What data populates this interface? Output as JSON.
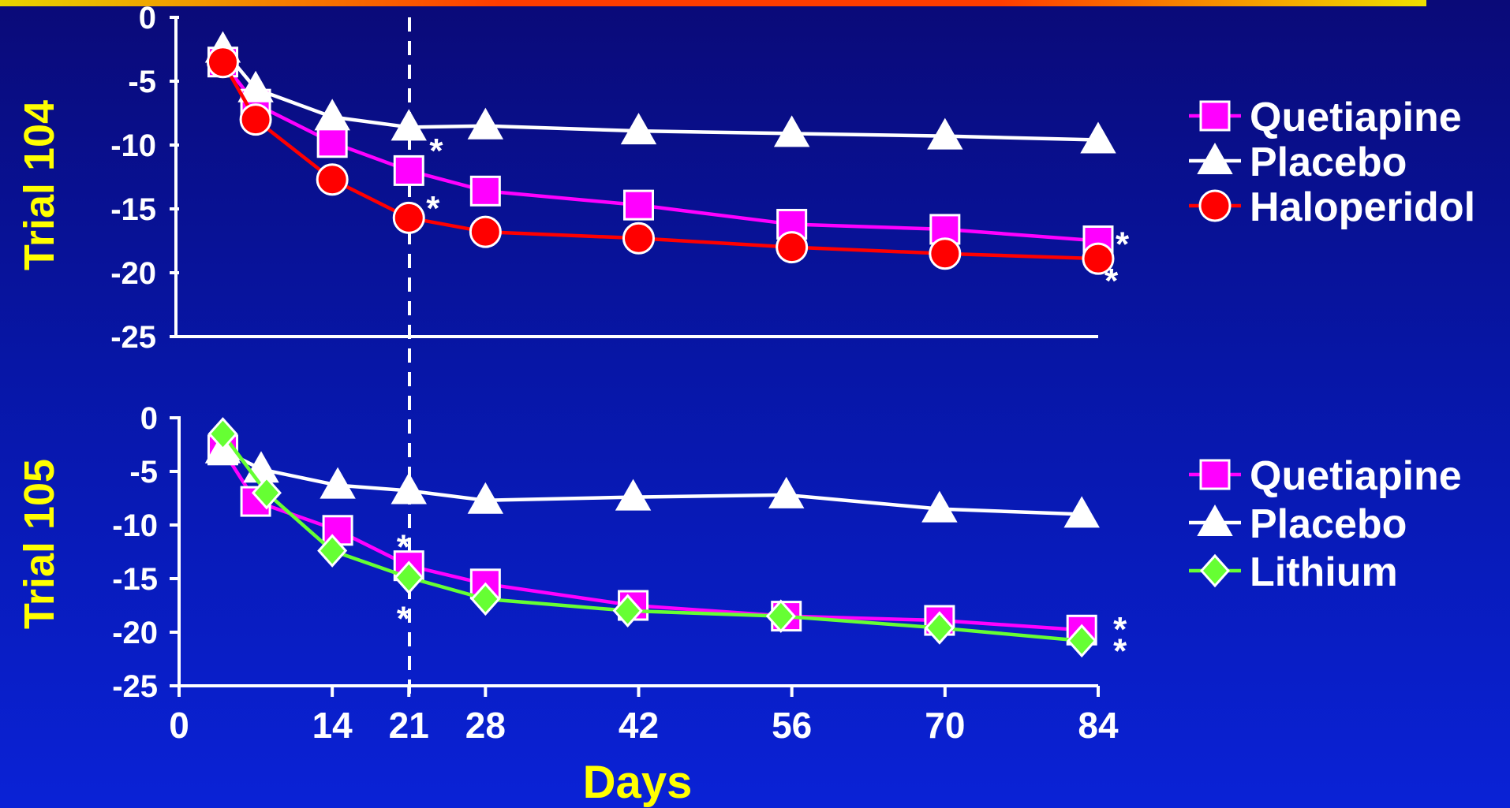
{
  "colors": {
    "background": "#0a1ab8",
    "axis": "#ffffff",
    "label_yellow": "#ffff00",
    "quetiapine": "#ff00ff",
    "placebo": "#ffffff",
    "haloperidol": "#ff0000",
    "lithium": "#66ff33"
  },
  "chart_data": [
    {
      "type": "line",
      "ylabel": "Trial 104",
      "ylim": [
        -25,
        0
      ],
      "y_ticks": [
        "0",
        "-5",
        "-10",
        "-15",
        "-20",
        "-25"
      ],
      "xlim": [
        0,
        84
      ],
      "reference_line_x": 21,
      "legend": [
        "Quetiapine",
        "Placebo",
        "Haloperidol"
      ],
      "legend_position": "right",
      "series": [
        {
          "name": "Quetiapine",
          "color": "#ff00ff",
          "marker": "square",
          "x": [
            4,
            7,
            14,
            21,
            28,
            42,
            56,
            70,
            84
          ],
          "y": [
            -3.5,
            -6.8,
            -9.8,
            -12.0,
            -13.6,
            -14.7,
            -16.2,
            -16.6,
            -17.5
          ]
        },
        {
          "name": "Placebo",
          "color": "#ffffff",
          "marker": "triangle",
          "x": [
            4,
            7,
            14,
            21,
            28,
            42,
            56,
            70,
            84
          ],
          "y": [
            -2.5,
            -5.6,
            -7.8,
            -8.6,
            -8.5,
            -8.9,
            -9.1,
            -9.3,
            -9.6
          ]
        },
        {
          "name": "Haloperidol",
          "color": "#ff0000",
          "marker": "circle",
          "x": [
            4,
            7,
            14,
            21,
            28,
            42,
            56,
            70,
            84
          ],
          "y": [
            -3.5,
            -8.0,
            -12.7,
            -15.7,
            -16.8,
            -17.3,
            -18.0,
            -18.5,
            -18.9
          ]
        }
      ],
      "annotations": [
        {
          "text": "*",
          "x": 23.5,
          "y": -10.0
        },
        {
          "text": "*",
          "x": 23.2,
          "y": -14.5
        },
        {
          "text": "*",
          "x": 86.2,
          "y": -17.3
        },
        {
          "text": "*",
          "x": 85.2,
          "y": -20.2
        }
      ]
    },
    {
      "type": "line",
      "ylabel": "Trial 105",
      "xlabel": "Days",
      "ylim": [
        -25,
        0
      ],
      "y_ticks": [
        "0",
        "-5",
        "-10",
        "-15",
        "-20",
        "-25"
      ],
      "xlim": [
        0,
        84
      ],
      "x_ticks": [
        "0",
        "14",
        "21",
        "28",
        "42",
        "56",
        "70",
        "84"
      ],
      "x_tick_values": [
        0,
        14,
        21,
        28,
        42,
        56,
        70,
        84
      ],
      "reference_line_x": 21,
      "legend": [
        "Quetiapine",
        "Placebo",
        "Lithium"
      ],
      "legend_position": "right",
      "series": [
        {
          "name": "Quetiapine",
          "color": "#ff00ff",
          "marker": "square",
          "x": [
            4,
            7,
            14.5,
            21,
            28,
            41.5,
            55.5,
            69.5,
            82.5
          ],
          "y": [
            -3.0,
            -7.8,
            -10.5,
            -13.8,
            -15.5,
            -17.5,
            -18.5,
            -18.9,
            -19.8
          ]
        },
        {
          "name": "Placebo",
          "color": "#ffffff",
          "marker": "triangle",
          "x": [
            4,
            7.5,
            14.5,
            21,
            28,
            41.5,
            55.5,
            69.5,
            82.5
          ],
          "y": [
            -3.0,
            -4.8,
            -6.3,
            -6.8,
            -7.7,
            -7.4,
            -7.2,
            -8.5,
            -9.0
          ]
        },
        {
          "name": "Lithium",
          "color": "#66ff33",
          "marker": "diamond",
          "x": [
            4,
            8,
            14,
            21,
            28,
            41,
            55,
            69.5,
            82.5
          ],
          "y": [
            -1.5,
            -7.0,
            -12.4,
            -14.9,
            -16.9,
            -18.0,
            -18.5,
            -19.6,
            -20.8
          ]
        }
      ],
      "annotations": [
        {
          "text": "*",
          "x": 20.5,
          "y": -11.5
        },
        {
          "text": "*",
          "x": 20.5,
          "y": -18.2
        },
        {
          "text": "*",
          "x": 86.0,
          "y": -19.2
        },
        {
          "text": "*",
          "x": 86.0,
          "y": -21.2
        }
      ]
    }
  ]
}
